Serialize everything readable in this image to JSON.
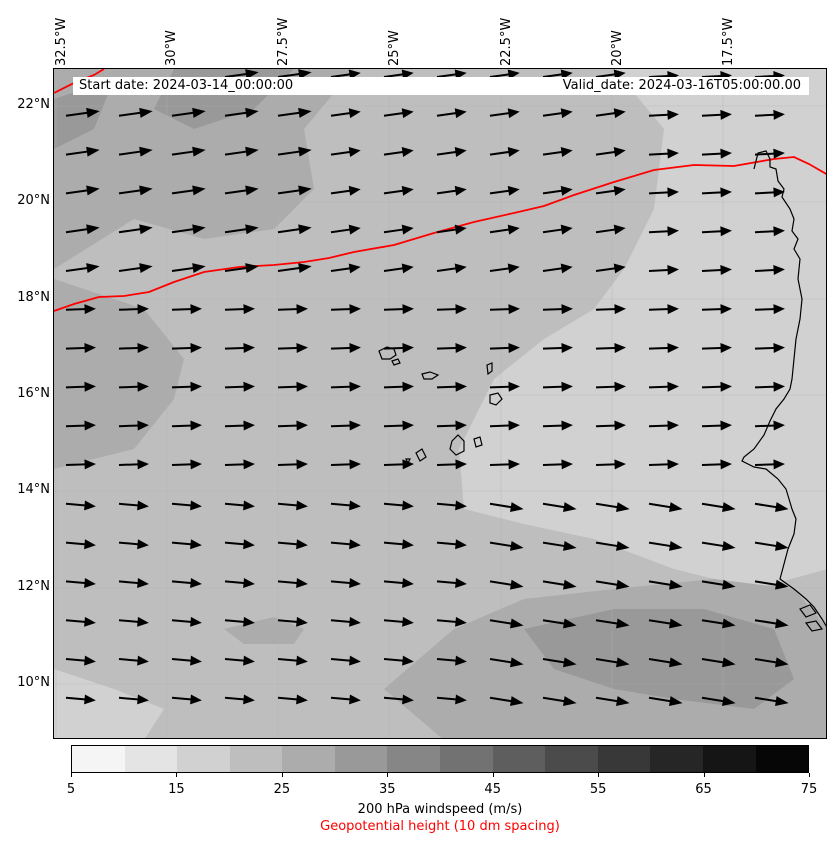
{
  "map": {
    "start_date": "Start date: 2024-03-14_00:00:00",
    "valid_date": "Valid_date: 2024-03-16T05:00:00.00",
    "lon_labels": [
      "32.5°W",
      "30°W",
      "27.5°W",
      "25°W",
      "22.5°W",
      "20°W",
      "17.5°W"
    ],
    "lat_labels": [
      "22°N",
      "20°N",
      "18°N",
      "16°N",
      "14°N",
      "12°N",
      "10°N"
    ],
    "colors": {
      "geopotential_line": "#ff0000",
      "coastline": "#000000",
      "wind_vector": "#000000"
    }
  },
  "colorbar": {
    "ticks": [
      "5",
      "15",
      "25",
      "35",
      "45",
      "55",
      "65",
      "75"
    ],
    "colors": [
      "#f5f5f5",
      "#e4e4e4",
      "#d1d1d1",
      "#bebebe",
      "#acacac",
      "#999999",
      "#868686",
      "#727272",
      "#5e5e5e",
      "#4b4b4b",
      "#383838",
      "#262626",
      "#151515",
      "#060606"
    ],
    "label": "200 hPa windspeed (m/s)",
    "label2": "Geopotential height (10 dm spacing)"
  }
}
